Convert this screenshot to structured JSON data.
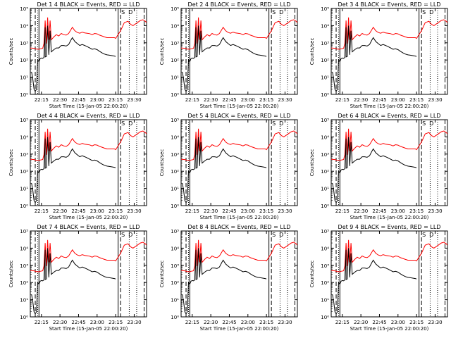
{
  "chart_data": {
    "type": "line",
    "grid_rows": 3,
    "grid_cols": 3,
    "y_scale": "log",
    "ylim": [
      1,
      100000
    ],
    "y_ticks": [
      {
        "v": 1,
        "label": "10⁰"
      },
      {
        "v": 10,
        "label": "10¹"
      },
      {
        "v": 100,
        "label": "10²"
      },
      {
        "v": 1000,
        "label": "10³"
      },
      {
        "v": 10000,
        "label": "10⁴"
      },
      {
        "v": 100000,
        "label": "10⁵"
      }
    ],
    "ylabel": "Counts/sec",
    "xlabel": "Start Time (15-Jan-05 22:00:20)",
    "xlim": [
      "22:06",
      "23:40"
    ],
    "x_ticks": [
      "22:15",
      "22:30",
      "22:45",
      "23:00",
      "23:15",
      "23:30"
    ],
    "series_colors": {
      "events": "#000000",
      "lld": "#ff0000"
    },
    "marker_labels": [
      "S",
      "D"
    ],
    "panels": [
      {
        "title": "Det 1 4 BLACK = Events, RED = LLD"
      },
      {
        "title": "Det 2 4 BLACK = Events, RED = LLD"
      },
      {
        "title": "Det 3 4 BLACK = Events, RED = LLD"
      },
      {
        "title": "Det 4 4 BLACK = Events, RED = LLD"
      },
      {
        "title": "Det 5 4 BLACK = Events, RED = LLD"
      },
      {
        "title": "Det 6 4 BLACK = Events, RED = LLD"
      },
      {
        "title": "Det 7 4 BLACK = Events, RED = LLD"
      },
      {
        "title": "Det 8 4 BLACK = Events, RED = LLD"
      },
      {
        "title": "Det 9 4 BLACK = Events, RED = LLD"
      }
    ],
    "series": [
      {
        "color_key": "lld",
        "points": [
          [
            "22:06",
            500
          ],
          [
            "22:09",
            480
          ],
          [
            "22:11",
            430
          ],
          [
            "22:13",
            420
          ],
          [
            "22:14",
            450
          ],
          [
            "22:16",
            480
          ],
          [
            "22:17",
            900
          ],
          [
            "22:18",
            20000
          ],
          [
            "22:19",
            900
          ],
          [
            "22:20",
            30000
          ],
          [
            "22:21",
            1500
          ],
          [
            "22:22",
            20000
          ],
          [
            "22:23",
            1500
          ],
          [
            "22:25",
            2200
          ],
          [
            "22:27",
            3000
          ],
          [
            "22:29",
            2500
          ],
          [
            "22:31",
            3500
          ],
          [
            "22:33",
            3000
          ],
          [
            "22:35",
            2800
          ],
          [
            "22:37",
            3500
          ],
          [
            "22:39",
            6000
          ],
          [
            "22:40",
            8000
          ],
          [
            "22:42",
            5000
          ],
          [
            "22:44",
            4000
          ],
          [
            "22:46",
            3600
          ],
          [
            "22:48",
            4200
          ],
          [
            "22:50",
            3800
          ],
          [
            "22:52",
            3600
          ],
          [
            "22:54",
            3400
          ],
          [
            "22:56",
            3000
          ],
          [
            "22:58",
            3500
          ],
          [
            "23:00",
            3300
          ],
          [
            "23:02",
            2800
          ],
          [
            "23:04",
            2500
          ],
          [
            "23:06",
            2200
          ],
          [
            "23:08",
            2000
          ],
          [
            "23:10",
            2000
          ],
          [
            "23:12",
            2000
          ],
          [
            "23:14",
            2000
          ],
          [
            "23:15",
            1800
          ],
          [
            "23:19",
            5000
          ],
          [
            "23:22",
            15000
          ],
          [
            "23:25",
            18000
          ],
          [
            "23:27",
            12000
          ],
          [
            "23:29",
            10000
          ],
          [
            "23:32",
            14000
          ],
          [
            "23:35",
            20000
          ],
          [
            "23:37",
            22000
          ],
          [
            "23:39",
            18000
          ],
          [
            "23:40",
            15000
          ]
        ]
      },
      {
        "color_key": "events",
        "points": [
          [
            "22:07",
            20
          ],
          [
            "22:08",
            8
          ],
          [
            "22:09",
            2
          ],
          [
            "22:10",
            1.5
          ],
          [
            "22:11",
            2
          ],
          [
            "22:12",
            100
          ],
          [
            "22:13",
            80
          ],
          [
            "22:14",
            120
          ],
          [
            "22:15",
            130
          ],
          [
            "22:16",
            125
          ],
          [
            "22:17",
            140
          ],
          [
            "22:18",
            8000
          ],
          [
            "22:18",
            150
          ],
          [
            "22:19",
            160
          ],
          [
            "22:20",
            10000
          ],
          [
            "22:21",
            200
          ],
          [
            "22:22",
            5000
          ],
          [
            "22:23",
            300
          ],
          [
            "22:25",
            400
          ],
          [
            "22:27",
            500
          ],
          [
            "22:29",
            500
          ],
          [
            "22:31",
            700
          ],
          [
            "22:33",
            700
          ],
          [
            "22:35",
            650
          ],
          [
            "22:37",
            800
          ],
          [
            "22:39",
            1500
          ],
          [
            "22:40",
            2000
          ],
          [
            "22:42",
            1200
          ],
          [
            "22:44",
            900
          ],
          [
            "22:46",
            700
          ],
          [
            "22:48",
            800
          ],
          [
            "22:50",
            700
          ],
          [
            "22:52",
            600
          ],
          [
            "22:54",
            500
          ],
          [
            "22:56",
            420
          ],
          [
            "22:58",
            450
          ],
          [
            "23:00",
            400
          ],
          [
            "23:02",
            320
          ],
          [
            "23:04",
            260
          ],
          [
            "23:06",
            220
          ],
          [
            "23:08",
            200
          ],
          [
            "23:10",
            190
          ],
          [
            "23:12",
            180
          ],
          [
            "23:14",
            170
          ],
          [
            "23:15",
            160
          ]
        ]
      }
    ]
  }
}
